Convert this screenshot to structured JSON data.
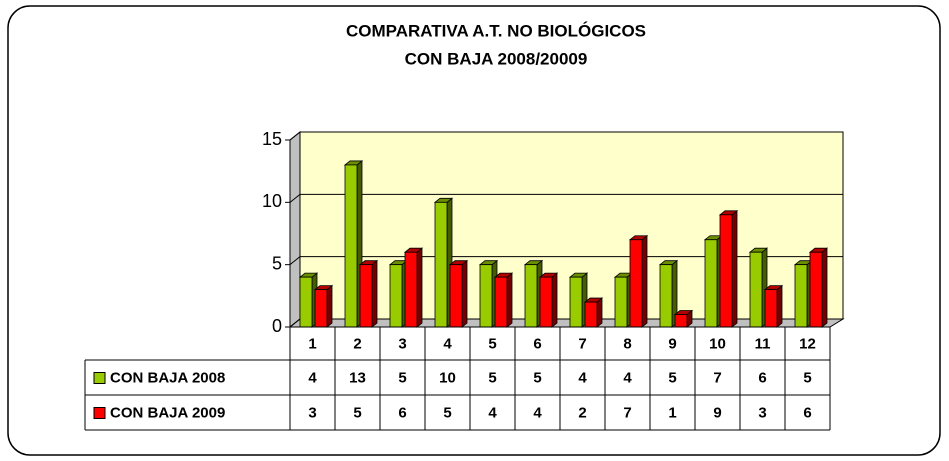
{
  "chart_data": {
    "type": "bar",
    "title": "COMPARATIVA A.T. NO BIOLÓGICOS",
    "subtitle": "CON BAJA 2008/20009",
    "categories": [
      "1",
      "2",
      "3",
      "4",
      "5",
      "6",
      "7",
      "8",
      "9",
      "10",
      "11",
      "12"
    ],
    "series": [
      {
        "name": "CON BAJA 2008",
        "color": "#99cc00",
        "values": [
          4,
          13,
          5,
          10,
          5,
          5,
          4,
          4,
          5,
          7,
          6,
          5
        ]
      },
      {
        "name": "CON BAJA 2009",
        "color": "#ff0000",
        "values": [
          3,
          5,
          6,
          5,
          4,
          4,
          2,
          7,
          1,
          9,
          3,
          6
        ]
      }
    ],
    "ylim": [
      0,
      15
    ],
    "yticks": [
      0,
      5,
      10,
      15
    ],
    "grid": true,
    "wall_color": "#ffffcc"
  }
}
